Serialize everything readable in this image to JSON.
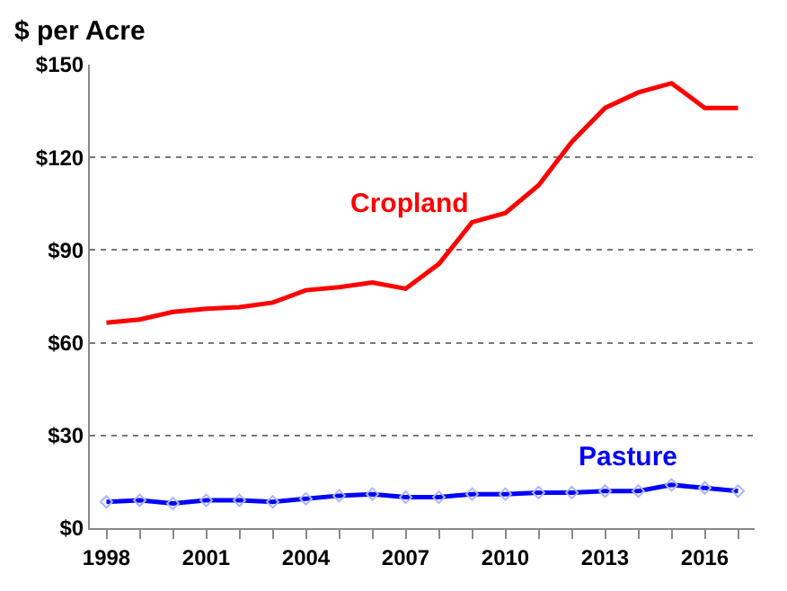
{
  "chart_data": {
    "type": "line",
    "ylabel": "$ per Acre",
    "x": [
      1998,
      1999,
      2000,
      2001,
      2002,
      2003,
      2004,
      2005,
      2006,
      2007,
      2008,
      2009,
      2010,
      2011,
      2012,
      2013,
      2014,
      2015,
      2016,
      2017
    ],
    "series": [
      {
        "name": "Cropland",
        "color": "#ff0000",
        "marker": "none",
        "values": [
          66.5,
          67.5,
          70,
          71,
          71.5,
          73,
          77,
          78,
          79.5,
          77.5,
          85.5,
          99,
          102,
          111,
          125,
          136,
          141,
          144,
          136,
          136
        ]
      },
      {
        "name": "Pasture",
        "color": "#0000ff",
        "marker": "diamond",
        "values": [
          8.5,
          9,
          8,
          9,
          9,
          8.5,
          9.5,
          10.5,
          11,
          10,
          10,
          11,
          11,
          11.5,
          11.5,
          12,
          12,
          14,
          13,
          12
        ]
      }
    ],
    "xlim": [
      1997.5,
      2017.5
    ],
    "xticks": [
      1998,
      {
        "value": 1999,
        "label": null
      },
      {
        "value": 2000,
        "label": null
      },
      2001,
      {
        "value": 2002,
        "label": null
      },
      {
        "value": 2003,
        "label": null
      },
      2004,
      {
        "value": 2005,
        "label": null
      },
      {
        "value": 2006,
        "label": null
      },
      2007,
      {
        "value": 2008,
        "label": null
      },
      {
        "value": 2009,
        "label": null
      },
      2010,
      {
        "value": 2011,
        "label": null
      },
      {
        "value": 2012,
        "label": null
      },
      2013,
      {
        "value": 2014,
        "label": null
      },
      {
        "value": 2015,
        "label": null
      },
      2016,
      {
        "value": 2017,
        "label": null
      }
    ],
    "ylim": [
      0,
      150
    ],
    "yticks": [
      {
        "value": 0,
        "label": "$0"
      },
      {
        "value": 30,
        "label": "$30"
      },
      {
        "value": 60,
        "label": "$60"
      },
      {
        "value": 90,
        "label": "$90"
      },
      {
        "value": 120,
        "label": "$120"
      },
      {
        "value": 150,
        "label": "$150"
      }
    ],
    "grid": "y",
    "legend": false
  }
}
